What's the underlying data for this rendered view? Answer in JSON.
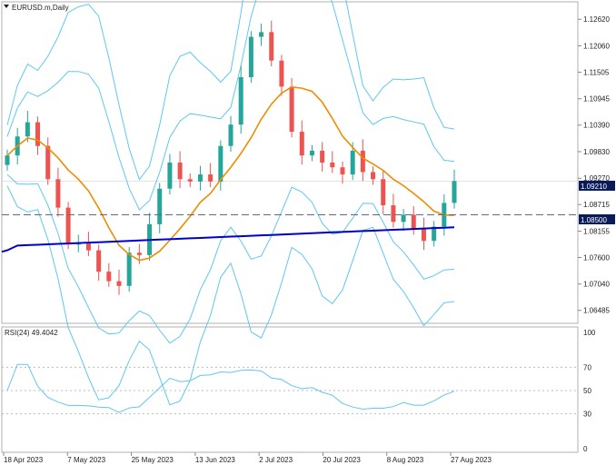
{
  "header": {
    "dropdown_icon": "triangle-down-icon",
    "symbol_label": "EURUSD.m,Daily"
  },
  "price_axis": {
    "ticks": [
      "1.12620",
      "1.12060",
      "1.11505",
      "1.10945",
      "1.10390",
      "1.09830",
      "1.09270",
      "1.08715",
      "1.08155",
      "1.07600",
      "1.07040",
      "1.06485"
    ],
    "current_price_label": "1.09210",
    "hline_label": "1.08500"
  },
  "rsi_panel": {
    "title": "RSI(24) 49.4042",
    "ticks": [
      "100",
      "70",
      "50",
      "30",
      "0"
    ]
  },
  "time_axis": {
    "labels": [
      "18 Apr 2023",
      "7 May 2023",
      "25 May 2023",
      "13 Jun 2023",
      "2 Jul 2023",
      "20 Jul 2023",
      "8 Aug 2023",
      "27 Aug 2023"
    ]
  },
  "colors": {
    "bull_candle": "#26a69a",
    "bear_candle": "#ef5350",
    "bollinger": "#5ec8ee",
    "ma_orange": "#f08c00",
    "ma_blue": "#0000cc",
    "hline": "#5a6a8a",
    "rsi_line": "#5ec8ee",
    "price_badge": "#0a1a5a"
  },
  "chart_data": {
    "type": "candlestick",
    "title": "EURUSD.m,Daily",
    "ylim": [
      1.0625,
      1.1295
    ],
    "x": [
      "18 Apr 2023",
      "7 May 2023",
      "25 May 2023",
      "13 Jun 2023",
      "2 Jul 2023",
      "20 Jul 2023",
      "8 Aug 2023",
      "27 Aug 2023"
    ],
    "close_prices": [
      1.0975,
      1.1015,
      1.1045,
      1.0995,
      1.0925,
      1.0865,
      1.079,
      1.079,
      1.0775,
      1.073,
      1.071,
      1.07,
      1.077,
      1.0765,
      1.083,
      1.0905,
      1.096,
      1.0925,
      1.092,
      1.0935,
      1.092,
      1.0995,
      1.104,
      1.114,
      1.1225,
      1.1235,
      1.1175,
      1.112,
      1.1025,
      1.0975,
      1.0985,
      1.096,
      1.095,
      1.0935,
      1.0985,
      1.094,
      1.0925,
      1.087,
      1.0835,
      1.085,
      1.082,
      1.0795,
      1.0825,
      1.0875,
      1.0921
    ],
    "horizontal_line": 1.085,
    "current_price": 1.0921,
    "rsi": {
      "name": "RSI(24)",
      "last": 49.4042,
      "ylim": [
        0,
        100
      ],
      "levels": [
        70,
        50,
        30
      ]
    }
  }
}
